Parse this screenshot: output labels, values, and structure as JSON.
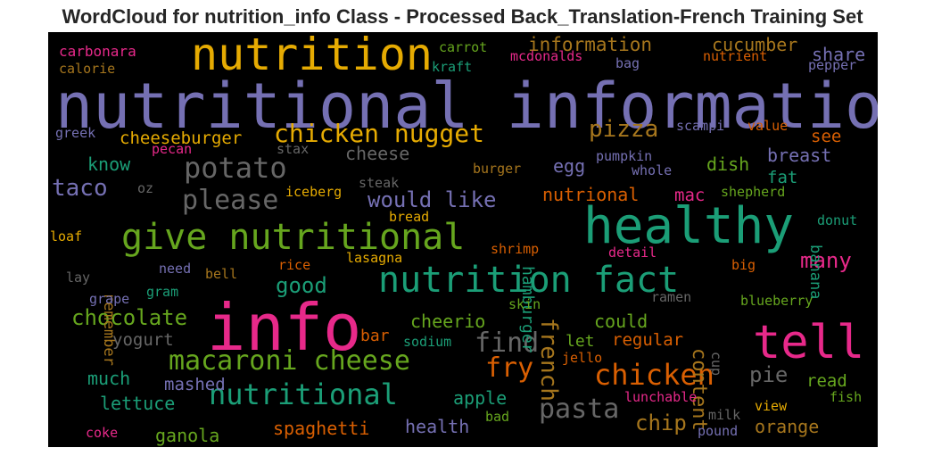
{
  "chart_data": {
    "type": "wordcloud",
    "title": "WordCloud for nutrition_info Class - Processed Back_Translation-French Training Set",
    "background": "#000000",
    "palette": [
      "#7570b3",
      "#e7298a",
      "#66a61e",
      "#1b9e77",
      "#d95f02",
      "#e6ab02",
      "#a6761d",
      "#666666"
    ],
    "words": [
      {
        "text": "nutritional information",
        "color": "#7570b3"
      },
      {
        "text": "info",
        "color": "#e7298a"
      },
      {
        "text": "healthy",
        "color": "#1b9e77"
      },
      {
        "text": "tell",
        "color": "#e7298a"
      },
      {
        "text": "nutrition",
        "color": "#e6ab02"
      },
      {
        "text": "give nutritional",
        "color": "#66a61e"
      },
      {
        "text": "nutrition fact",
        "color": "#1b9e77"
      },
      {
        "text": "nutritional",
        "color": "#1b9e77"
      },
      {
        "text": "macaroni cheese",
        "color": "#66a61e"
      },
      {
        "text": "chicken",
        "color": "#d95f02"
      },
      {
        "text": "potato",
        "color": "#666666"
      },
      {
        "text": "please",
        "color": "#666666"
      },
      {
        "text": "chicken nugget",
        "color": "#e6ab02"
      },
      {
        "text": "pasta",
        "color": "#666666"
      },
      {
        "text": "pizza",
        "color": "#a6761d"
      },
      {
        "text": "fry",
        "color": "#d95f02"
      },
      {
        "text": "find",
        "color": "#666666"
      },
      {
        "text": "taco",
        "color": "#7570b3"
      },
      {
        "text": "french",
        "color": "#a6761d"
      },
      {
        "text": "would like",
        "color": "#7570b3"
      },
      {
        "text": "chocolate",
        "color": "#66a61e"
      },
      {
        "text": "content",
        "color": "#a6761d"
      },
      {
        "text": "good",
        "color": "#1b9e77"
      },
      {
        "text": "chip",
        "color": "#a6761d"
      },
      {
        "text": "many",
        "color": "#e7298a"
      },
      {
        "text": "pie",
        "color": "#666666"
      },
      {
        "text": "cheeseburger",
        "color": "#e6ab02"
      },
      {
        "text": "information",
        "color": "#a6761d"
      },
      {
        "text": "cucumber",
        "color": "#a6761d"
      },
      {
        "text": "share",
        "color": "#7570b3"
      },
      {
        "text": "cheese",
        "color": "#666666"
      },
      {
        "text": "breast",
        "color": "#7570b3"
      },
      {
        "text": "fat",
        "color": "#1b9e77"
      },
      {
        "text": "dish",
        "color": "#66a61e"
      },
      {
        "text": "egg",
        "color": "#7570b3"
      },
      {
        "text": "hamburger",
        "color": "#1b9e77"
      },
      {
        "text": "know",
        "color": "#1b9e77"
      },
      {
        "text": "see",
        "color": "#d95f02"
      },
      {
        "text": "nutrional",
        "color": "#d95f02"
      },
      {
        "text": "mac",
        "color": "#e7298a"
      },
      {
        "text": "banana",
        "color": "#1b9e77"
      },
      {
        "text": "remember",
        "color": "#a6761d"
      },
      {
        "text": "cheerio",
        "color": "#66a61e"
      },
      {
        "text": "could",
        "color": "#66a61e"
      },
      {
        "text": "regular",
        "color": "#d95f02"
      },
      {
        "text": "let",
        "color": "#66a61e"
      },
      {
        "text": "yogurt",
        "color": "#666666"
      },
      {
        "text": "much",
        "color": "#1b9e77"
      },
      {
        "text": "mashed",
        "color": "#7570b3"
      },
      {
        "text": "lettuce",
        "color": "#1b9e77"
      },
      {
        "text": "apple",
        "color": "#1b9e77"
      },
      {
        "text": "health",
        "color": "#7570b3"
      },
      {
        "text": "orange",
        "color": "#a6761d"
      },
      {
        "text": "read",
        "color": "#66a61e"
      },
      {
        "text": "spaghetti",
        "color": "#d95f02"
      },
      {
        "text": "ganola",
        "color": "#66a61e"
      },
      {
        "text": "bar",
        "color": "#d95f02"
      },
      {
        "text": "cup",
        "color": "#666666"
      },
      {
        "text": "carbonara",
        "color": "#e7298a"
      },
      {
        "text": "calorie",
        "color": "#a6761d"
      },
      {
        "text": "carrot",
        "color": "#66a61e"
      },
      {
        "text": "kraft",
        "color": "#1b9e77"
      },
      {
        "text": "mcdonalds",
        "color": "#e7298a"
      },
      {
        "text": "bag",
        "color": "#7570b3"
      },
      {
        "text": "nutrient",
        "color": "#d95f02"
      },
      {
        "text": "pepper",
        "color": "#7570b3"
      },
      {
        "text": "greek",
        "color": "#7570b3"
      },
      {
        "text": "pecan",
        "color": "#e7298a"
      },
      {
        "text": "stax",
        "color": "#666666"
      },
      {
        "text": "scampi",
        "color": "#7570b3"
      },
      {
        "text": "value",
        "color": "#d95f02"
      },
      {
        "text": "pumpkin",
        "color": "#7570b3"
      },
      {
        "text": "whole",
        "color": "#7570b3"
      },
      {
        "text": "burger",
        "color": "#a6761d"
      },
      {
        "text": "steak",
        "color": "#666666"
      },
      {
        "text": "oz",
        "color": "#666666"
      },
      {
        "text": "iceberg",
        "color": "#e6ab02"
      },
      {
        "text": "shepherd",
        "color": "#66a61e"
      },
      {
        "text": "bread",
        "color": "#e6ab02"
      },
      {
        "text": "donut",
        "color": "#1b9e77"
      },
      {
        "text": "loaf",
        "color": "#e6ab02"
      },
      {
        "text": "shrimp",
        "color": "#d95f02"
      },
      {
        "text": "lasagna",
        "color": "#e6ab02"
      },
      {
        "text": "detail",
        "color": "#e7298a"
      },
      {
        "text": "rice",
        "color": "#d95f02"
      },
      {
        "text": "big",
        "color": "#d95f02"
      },
      {
        "text": "need",
        "color": "#7570b3"
      },
      {
        "text": "bell",
        "color": "#a6761d"
      },
      {
        "text": "lay",
        "color": "#666666"
      },
      {
        "text": "gram",
        "color": "#1b9e77"
      },
      {
        "text": "grape",
        "color": "#7570b3"
      },
      {
        "text": "skin",
        "color": "#66a61e"
      },
      {
        "text": "ramen",
        "color": "#666666"
      },
      {
        "text": "blueberry",
        "color": "#66a61e"
      },
      {
        "text": "sodium",
        "color": "#1b9e77"
      },
      {
        "text": "jello",
        "color": "#d95f02"
      },
      {
        "text": "lunchable",
        "color": "#e7298a"
      },
      {
        "text": "fish",
        "color": "#66a61e"
      },
      {
        "text": "view",
        "color": "#e6ab02"
      },
      {
        "text": "bad",
        "color": "#66a61e"
      },
      {
        "text": "milk",
        "color": "#666666"
      },
      {
        "text": "pound",
        "color": "#7570b3"
      },
      {
        "text": "coke",
        "color": "#e7298a"
      }
    ]
  }
}
